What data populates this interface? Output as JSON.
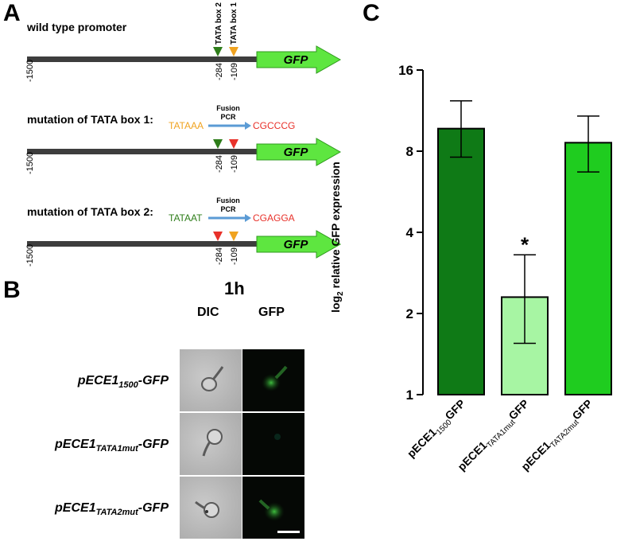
{
  "panels": {
    "a": "A",
    "b": "B",
    "c": "C"
  },
  "panel_a": {
    "constructs": [
      {
        "title": "wild type promoter",
        "gene": "GFP",
        "left_tick": "-1500",
        "tick_284": "-284",
        "tick_109": "-109",
        "box_labels": [
          "TATA box 2",
          "TATA box 1"
        ],
        "marker_colors": {
          "box2": "#2e7d1a",
          "box1": "#f0a320"
        }
      },
      {
        "title": "mutation of TATA box 1:",
        "gene": "GFP",
        "left_tick": "-1500",
        "tick_284": "-284",
        "tick_109": "-109",
        "original_seq": "TATAAA",
        "original_color": "#f0a320",
        "fusion_label": "Fusion\nPCR",
        "mutant_seq": "CGCCCG",
        "mutant_color": "#e8312a",
        "marker_colors": {
          "box2": "#2e7d1a",
          "box1": "#e8312a"
        }
      },
      {
        "title": "mutation of TATA box 2:",
        "gene": "GFP",
        "left_tick": "-1500",
        "tick_284": "-284",
        "tick_109": "-109",
        "original_seq": "TATAAT",
        "original_color": "#2e7d1a",
        "fusion_label": "Fusion\nPCR",
        "mutant_seq": "CGAGGA",
        "mutant_color": "#e8312a",
        "marker_colors": {
          "box2": "#e8312a",
          "box1": "#f0a320"
        }
      }
    ]
  },
  "panel_b": {
    "time": "1h",
    "col_dic": "DIC",
    "col_gfp": "GFP",
    "rows": [
      {
        "name": "pECE1",
        "sub": "1500",
        "suffix": "-GFP",
        "gfp_signal": "bright"
      },
      {
        "name": "pECE1",
        "sub": "TATA1mut",
        "suffix": "-GFP",
        "gfp_signal": "none"
      },
      {
        "name": "pECE1",
        "sub": "TATA2mut",
        "suffix": "-GFP",
        "gfp_signal": "bright"
      }
    ]
  },
  "chart_data": {
    "type": "bar",
    "title": "",
    "ylabel_main": "log",
    "ylabel_sub": "2",
    "ylabel_rest": " relative GFP expression",
    "yscale": "log2",
    "ylim": [
      1,
      16
    ],
    "yticks": [
      "1",
      "2",
      "4",
      "8",
      "16"
    ],
    "categories": [
      {
        "main": "pECE1",
        "sub": "1500",
        "suffix": "GFP"
      },
      {
        "main": "pECE1",
        "sub": "TATA1mut",
        "suffix": "GFP"
      },
      {
        "main": "pECE1",
        "sub": "TATA2mut",
        "suffix": "GFP"
      }
    ],
    "values": [
      9.7,
      2.3,
      8.6
    ],
    "error_high": [
      12.3,
      3.3,
      10.8
    ],
    "error_low": [
      7.6,
      1.55,
      6.7
    ],
    "colors": [
      "#0f7a16",
      "#a7f5a3",
      "#1fcc1f"
    ],
    "annotation": "*",
    "annotation_category": 1
  }
}
